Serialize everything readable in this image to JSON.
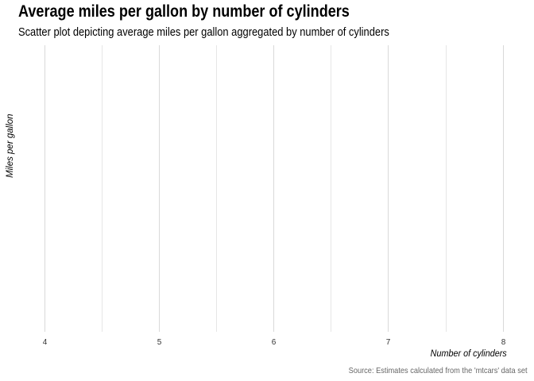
{
  "chart_data": {
    "type": "scatter",
    "title": "Average miles per gallon by number of cylinders",
    "subtitle": "Scatter plot depicting average miles per gallon aggregated by number of cylinders",
    "xlabel": "Number of cylinders",
    "ylabel": "Miles per gallon",
    "caption": "Source: Estimates calculated from the 'mtcars' data set",
    "x_ticks": [
      "4",
      "5",
      "6",
      "7",
      "8"
    ],
    "x_tick_values": [
      4,
      5,
      6,
      7,
      8
    ],
    "xlim": [
      3.96,
      8.03
    ],
    "points": [],
    "grid": {
      "major_x": true,
      "minor_x": true,
      "major_y": false
    },
    "colors": {
      "major_grid": "#d9d9d9",
      "minor_grid": "#e6e6e6",
      "tick_text": "#333333",
      "caption": "#666666"
    }
  }
}
